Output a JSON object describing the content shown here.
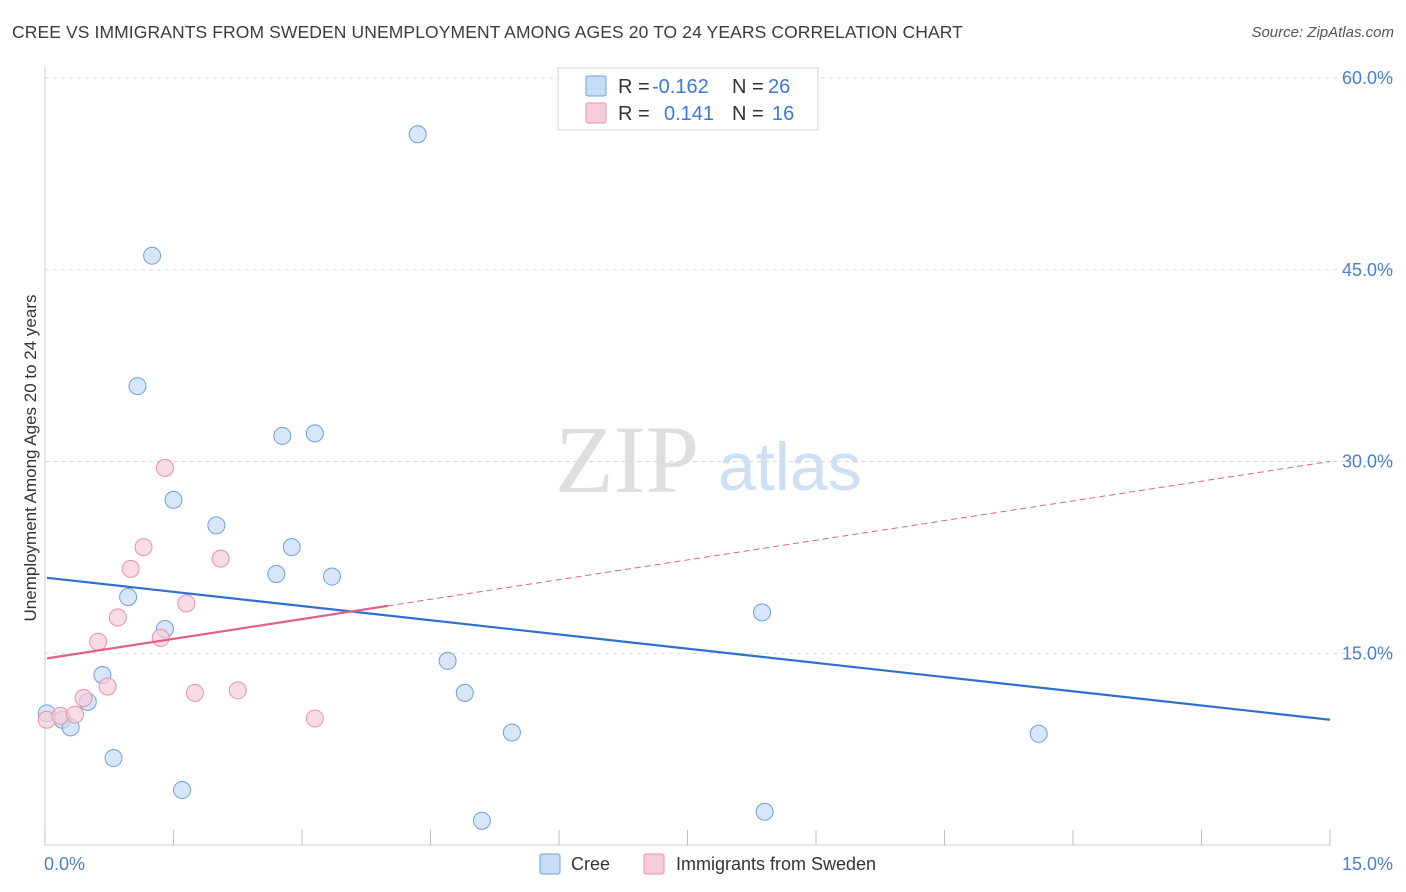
{
  "title": "CREE VS IMMIGRANTS FROM SWEDEN UNEMPLOYMENT AMONG AGES 20 TO 24 YEARS CORRELATION CHART",
  "source": "Source: ZipAtlas.com",
  "watermark": {
    "zip": "ZIP",
    "atlas": "atlas"
  },
  "colors": {
    "cree": "#6f9fe0",
    "cree_fill": "#c7dcf7",
    "cree_line": "#2f6fd0",
    "sweden": "#eb8fab",
    "sweden_fill": "#f8cdd9",
    "sweden_line": "#e0608a",
    "axis_label": "#4a7fd0",
    "grid": "#d8d8d8"
  },
  "legend": {
    "rows": [
      {
        "r_label": "R =",
        "r_value": "-0.162",
        "n_label": "N =",
        "n_value": "26"
      },
      {
        "r_label": "R =",
        "r_value": "0.141",
        "n_label": "N =",
        "n_value": "16"
      }
    ]
  },
  "bottom_legend": [
    "Cree",
    "Immigrants from Sweden"
  ],
  "chart_data": {
    "type": "scatter",
    "title": "CREE VS IMMIGRANTS FROM SWEDEN UNEMPLOYMENT AMONG AGES 20 TO 24 YEARS CORRELATION CHART",
    "xlabel": "",
    "ylabel": "Unemployment Among Ages 20 to 24 years",
    "xlim": [
      0,
      15
    ],
    "ylim": [
      0,
      60
    ],
    "x_tick_labels": [
      "0.0%",
      "15.0%"
    ],
    "y_ticks": [
      15,
      30,
      45,
      60
    ],
    "y_tick_labels": [
      "15.0%",
      "30.0%",
      "45.0%",
      "60.0%"
    ],
    "grid": true,
    "legend_position": "top-center",
    "series": [
      {
        "name": "Cree",
        "r": -0.162,
        "n": 26,
        "points": [
          [
            0.02,
            10.3
          ],
          [
            0.2,
            9.8
          ],
          [
            0.3,
            9.2
          ],
          [
            0.5,
            11.2
          ],
          [
            0.67,
            13.3
          ],
          [
            0.8,
            6.8
          ],
          [
            0.97,
            19.4
          ],
          [
            1.08,
            35.9
          ],
          [
            1.25,
            46.1
          ],
          [
            1.4,
            16.9
          ],
          [
            1.5,
            27.0
          ],
          [
            1.6,
            4.3
          ],
          [
            2.0,
            25.0
          ],
          [
            2.7,
            21.2
          ],
          [
            2.77,
            32.0
          ],
          [
            2.88,
            23.3
          ],
          [
            3.15,
            32.2
          ],
          [
            3.35,
            21.0
          ],
          [
            4.35,
            55.6
          ],
          [
            4.7,
            14.4
          ],
          [
            4.9,
            11.9
          ],
          [
            5.1,
            1.9
          ],
          [
            5.45,
            8.8
          ],
          [
            8.37,
            18.2
          ],
          [
            8.4,
            2.6
          ],
          [
            11.6,
            8.7
          ]
        ],
        "trend": {
          "x": [
            0,
            15
          ],
          "y": [
            20.9,
            9.8
          ]
        }
      },
      {
        "name": "Immigrants from Sweden",
        "r": 0.141,
        "n": 16,
        "points": [
          [
            0.02,
            9.8
          ],
          [
            0.18,
            10.1
          ],
          [
            0.35,
            10.2
          ],
          [
            0.45,
            11.5
          ],
          [
            0.62,
            15.9
          ],
          [
            0.73,
            12.4
          ],
          [
            0.85,
            17.8
          ],
          [
            1.0,
            21.6
          ],
          [
            1.15,
            23.3
          ],
          [
            1.35,
            16.2
          ],
          [
            1.4,
            29.5
          ],
          [
            1.65,
            18.9
          ],
          [
            1.75,
            11.9
          ],
          [
            2.05,
            22.4
          ],
          [
            2.25,
            12.1
          ],
          [
            3.15,
            9.9
          ]
        ],
        "trend": {
          "x": [
            0,
            15
          ],
          "y": [
            14.6,
            30.0
          ],
          "solid_until_x": 4.0
        }
      }
    ]
  }
}
